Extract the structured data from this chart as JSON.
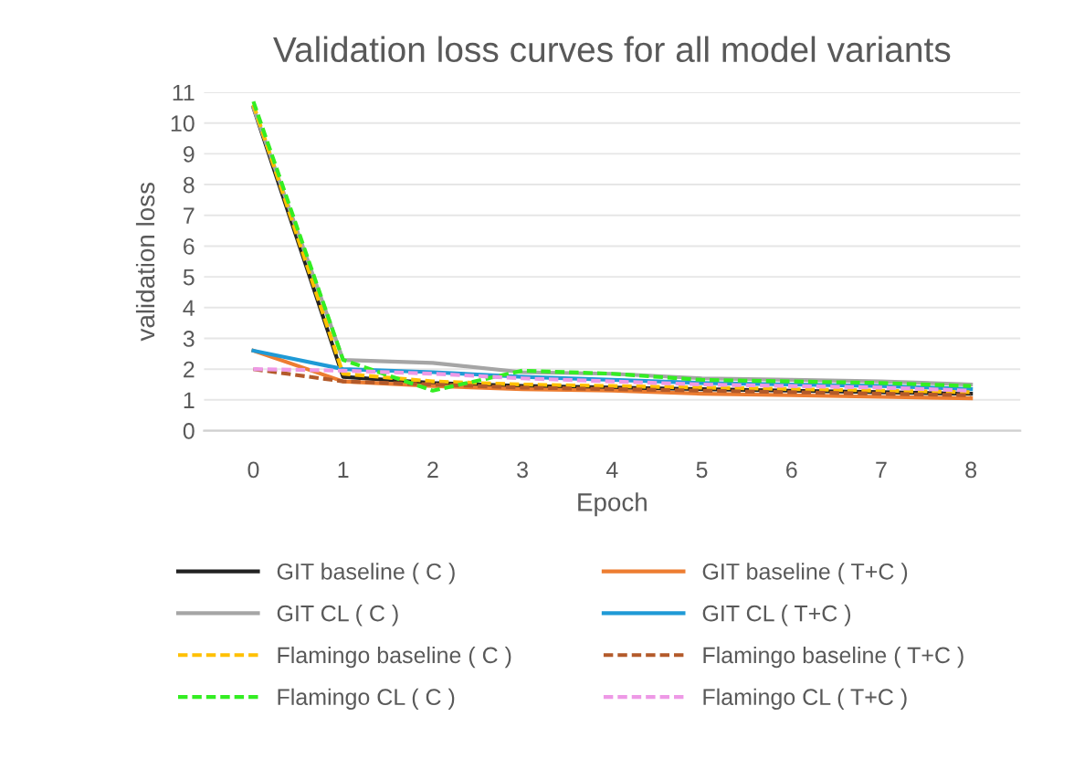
{
  "chart_data": {
    "type": "line",
    "title": "Validation loss curves for all model variants",
    "xlabel": "Epoch",
    "ylabel": "validation loss",
    "categories": [
      "0",
      "1",
      "2",
      "3",
      "4",
      "5",
      "6",
      "7",
      "8"
    ],
    "ylim": [
      0,
      11
    ],
    "yticks": [
      0,
      1,
      2,
      3,
      4,
      5,
      6,
      7,
      8,
      9,
      10,
      11
    ],
    "grid": "y",
    "legend": "bottom",
    "marker": "none",
    "series": [
      {
        "name": "GIT baseline ( C )",
        "color": "#222222",
        "line_style": "solid",
        "values": [
          10.5,
          1.75,
          1.55,
          1.45,
          1.4,
          1.35,
          1.3,
          1.25,
          1.2
        ]
      },
      {
        "name": "GIT baseline ( T+C )",
        "color": "#ed7d31",
        "line_style": "solid",
        "values": [
          2.6,
          1.6,
          1.45,
          1.35,
          1.3,
          1.2,
          1.15,
          1.1,
          1.05
        ]
      },
      {
        "name": "GIT CL ( C )",
        "color": "#a5a5a5",
        "line_style": "solid",
        "values": [
          10.5,
          2.3,
          2.2,
          1.9,
          1.85,
          1.7,
          1.65,
          1.6,
          1.5
        ]
      },
      {
        "name": "GIT CL ( T+C )",
        "color": "#1f9ad6",
        "line_style": "solid",
        "values": [
          2.6,
          2.0,
          1.9,
          1.75,
          1.65,
          1.55,
          1.5,
          1.45,
          1.35
        ]
      },
      {
        "name": "Flamingo baseline ( C )",
        "color": "#ffc000",
        "line_style": "dashed",
        "values": [
          10.6,
          1.85,
          1.6,
          1.5,
          1.45,
          1.4,
          1.35,
          1.3,
          1.25
        ]
      },
      {
        "name": "Flamingo baseline ( T+C )",
        "color": "#b35a2a",
        "line_style": "dashed",
        "values": [
          2.0,
          1.6,
          1.5,
          1.4,
          1.35,
          1.3,
          1.25,
          1.2,
          1.15
        ]
      },
      {
        "name": "Flamingo CL ( C )",
        "color": "#33ee22",
        "line_style": "dashed",
        "values": [
          10.7,
          2.3,
          1.3,
          1.95,
          1.85,
          1.65,
          1.6,
          1.55,
          1.45
        ]
      },
      {
        "name": "Flamingo CL ( T+C )",
        "color": "#ee99e6",
        "line_style": "dashed",
        "values": [
          2.0,
          1.95,
          1.85,
          1.7,
          1.6,
          1.5,
          1.45,
          1.4,
          1.3
        ]
      }
    ]
  }
}
